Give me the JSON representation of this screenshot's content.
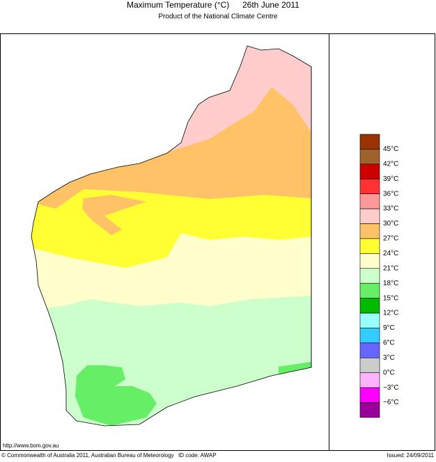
{
  "header": {
    "title": "Maximum Temperature (°C)",
    "date": "26th June 2011",
    "subtitle": "Product of the National Climate Centre"
  },
  "legend": {
    "colors": [
      "#993300",
      "#a0622d",
      "#cc0000",
      "#ff3333",
      "#ff9999",
      "#ffcccc",
      "#ffc266",
      "#ffff33",
      "#ffffcc",
      "#ccffcc",
      "#66ee66",
      "#00bb00",
      "#99ffff",
      "#33ccff",
      "#6666ff",
      "#cccccc",
      "#ffb3ff",
      "#ff00ff",
      "#990099"
    ],
    "labels": [
      "45°C",
      "42°C",
      "39°C",
      "36°C",
      "33°C",
      "30°C",
      "27°C",
      "24°C",
      "21°C",
      "18°C",
      "15°C",
      "12°C",
      "9°C",
      "6°C",
      "3°C",
      "0°C",
      "−3°C",
      "−6°C"
    ]
  },
  "footer": {
    "url": "http://www.bom.gov.au",
    "copyright": "© Commonwealth of Australia 2011, Australian Bureau of Meteorology",
    "id_code": "ID code: AWAP",
    "issued": "Issued: 24/09/2011"
  }
}
